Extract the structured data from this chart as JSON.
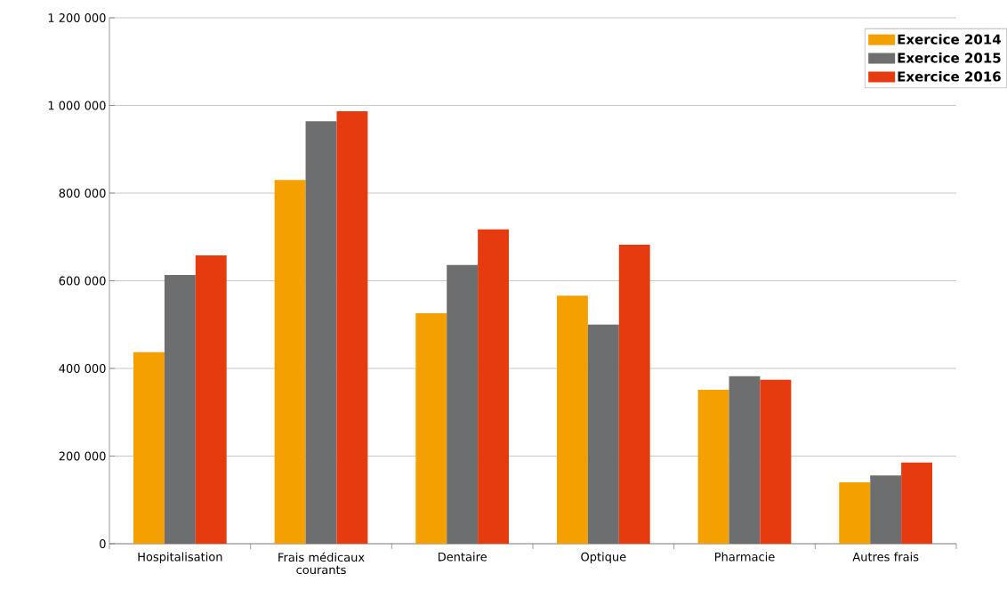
{
  "chart_data": {
    "type": "bar",
    "categories": [
      "Hospitalisation",
      "Frais médicaux courants",
      "Dentaire",
      "Optique",
      "Pharmacie",
      "Autres frais"
    ],
    "series": [
      {
        "name": "Exercice 2014",
        "color": "#f4a000",
        "values": [
          437000,
          830000,
          526000,
          566000,
          351000,
          140000
        ]
      },
      {
        "name": "Exercice 2015",
        "color": "#6d6e70",
        "values": [
          613000,
          964000,
          636000,
          500000,
          382000,
          156000
        ]
      },
      {
        "name": "Exercice 2016",
        "color": "#e53b0e",
        "values": [
          658000,
          987000,
          717000,
          682000,
          374000,
          185000
        ]
      }
    ],
    "ylim": [
      0,
      1200000
    ],
    "yticks": [
      0,
      {
        "value": 200000,
        "label": "200 000"
      },
      {
        "value": 400000,
        "label": "400 000"
      },
      {
        "value": 600000,
        "label": "600 000"
      },
      {
        "value": 800000,
        "label": "800 000"
      },
      {
        "value": 1000000,
        "label": "1 000 000"
      },
      {
        "value": 1200000,
        "label": "1 200 000"
      }
    ],
    "grid": "y",
    "legend": "top right"
  }
}
